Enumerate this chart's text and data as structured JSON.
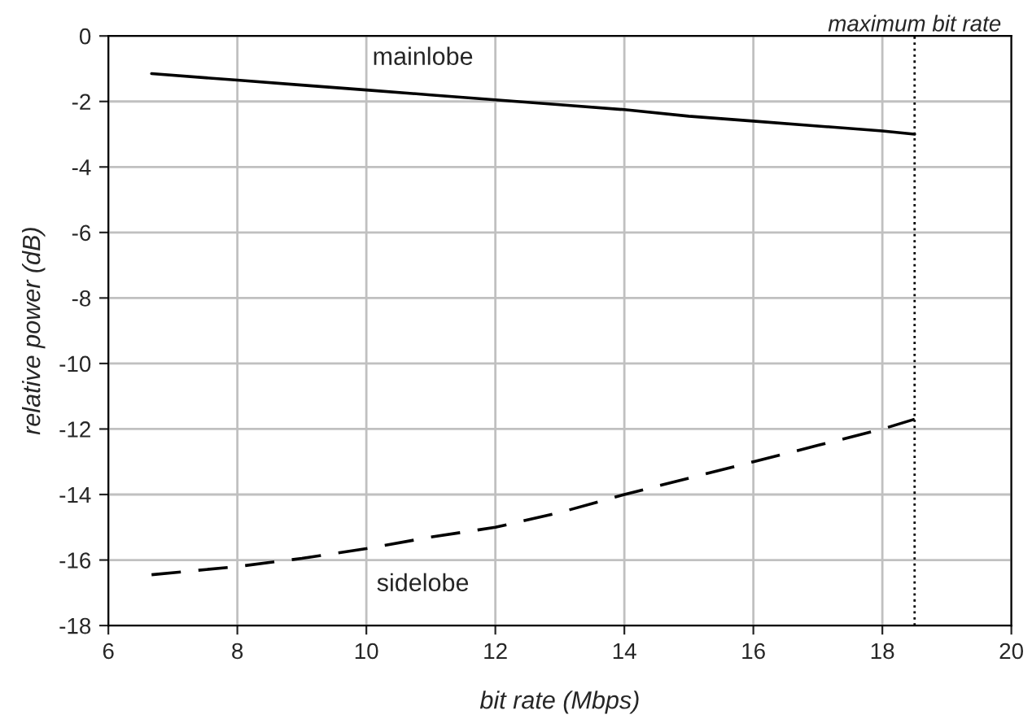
{
  "chart_data": {
    "type": "line",
    "xlabel": "bit rate (Mbps)",
    "ylabel": "relative power (dB)",
    "x": [
      6.67,
      8,
      9,
      10,
      11,
      12,
      13,
      14,
      15,
      16,
      17,
      18,
      18.5
    ],
    "series": [
      {
        "name": "mainlobe",
        "color": "#000000",
        "line_style": "solid",
        "values": [
          -1.15,
          -1.35,
          -1.5,
          -1.65,
          -1.8,
          -1.95,
          -2.1,
          -2.25,
          -2.45,
          -2.6,
          -2.75,
          -2.9,
          -3.0
        ]
      },
      {
        "name": "sidelobe",
        "color": "#000000",
        "line_style": "dashed",
        "values": [
          -16.45,
          -16.2,
          -15.95,
          -15.65,
          -15.3,
          -15.0,
          -14.55,
          -14.0,
          -13.5,
          -13.0,
          -12.5,
          -12.0,
          -11.7
        ]
      }
    ],
    "xlim": [
      6,
      20
    ],
    "xticks": [
      6,
      8,
      10,
      12,
      14,
      16,
      18,
      20
    ],
    "ylim": [
      -18,
      0
    ],
    "yticks": [
      -18,
      -16,
      -14,
      -12,
      -10,
      -8,
      -6,
      -4,
      -2,
      0
    ],
    "grid": true,
    "legend": false,
    "marker": "none",
    "ref_lines": [
      {
        "axis": "x",
        "value": 18.5,
        "label": "maximum bit rate",
        "line_style": "dotted",
        "color": "#000000"
      }
    ]
  }
}
